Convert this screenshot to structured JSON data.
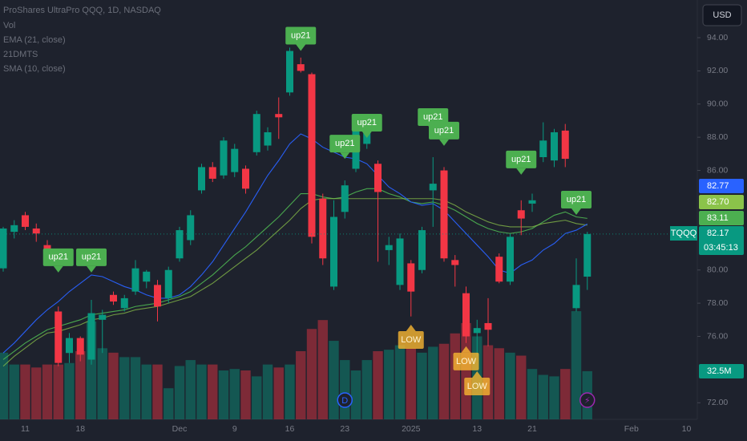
{
  "chart_data": {
    "type": "candlestick",
    "title": "ProShares UltraPro QQQ, 1D, NASDAQ",
    "currency": "USD",
    "categories": [
      null,
      null,
      "11",
      null,
      null,
      null,
      null,
      "18",
      null,
      null,
      null,
      null,
      null,
      null,
      null,
      null,
      "Dec",
      null,
      null,
      null,
      null,
      "9",
      null,
      null,
      null,
      null,
      "16",
      null,
      null,
      null,
      null,
      "23",
      null,
      null,
      null,
      null,
      null,
      "2025",
      null,
      null,
      null,
      null,
      null,
      "13",
      null,
      null,
      null,
      null,
      "21",
      null,
      null,
      null,
      null,
      null,
      null,
      null,
      null,
      "Feb",
      null,
      null,
      null,
      null,
      "10"
    ],
    "open": [
      80.1,
      82.3,
      83.3,
      82.5,
      81.5,
      77.5,
      75.0,
      75.9,
      74.6,
      77.0,
      78.5,
      77.7,
      78.7,
      79.3,
      79.1,
      78.3,
      80.7,
      81.8,
      84.8,
      86.2,
      85.7,
      85.9,
      86.1,
      87.1,
      87.5,
      89.4,
      90.7,
      92.4,
      91.8,
      84.3,
      79.0,
      83.5,
      86.1,
      87.6,
      86.4,
      81.2,
      79.1,
      80.4,
      80.0,
      84.8,
      86.0,
      80.6,
      78.6,
      76.2,
      76.8,
      80.8,
      79.3,
      83.6,
      84.0,
      86.8,
      86.6,
      88.4,
      77.7,
      79.6,
      null,
      null,
      null,
      null,
      null,
      null,
      null,
      null,
      null
    ],
    "high": [
      82.6,
      83.0,
      83.5,
      82.8,
      81.8,
      77.8,
      76.2,
      76.0,
      78.2,
      77.6,
      78.7,
      78.5,
      80.6,
      80.0,
      79.4,
      80.2,
      82.6,
      83.6,
      86.4,
      86.5,
      88.0,
      87.6,
      86.3,
      89.6,
      88.6,
      90.4,
      93.4,
      92.8,
      91.9,
      84.6,
      84.2,
      85.4,
      88.8,
      88.8,
      86.6,
      82.0,
      82.2,
      80.6,
      82.6,
      86.8,
      86.2,
      80.9,
      79.0,
      77.0,
      78.3,
      81.0,
      82.2,
      84.2,
      84.6,
      88.9,
      88.5,
      88.8,
      80.7,
      82.3,
      null,
      null,
      null,
      null,
      null,
      null,
      null,
      null,
      null
    ],
    "low": [
      79.9,
      81.9,
      82.4,
      81.7,
      80.4,
      74.2,
      74.4,
      74.5,
      74.3,
      75.0,
      77.9,
      77.5,
      78.5,
      78.9,
      76.9,
      78.0,
      80.5,
      81.5,
      84.6,
      85.3,
      85.5,
      85.6,
      84.6,
      86.9,
      87.2,
      87.9,
      90.5,
      91.9,
      81.6,
      80.3,
      78.8,
      83.1,
      85.9,
      87.3,
      80.5,
      80.3,
      78.8,
      77.2,
      79.8,
      82.6,
      80.5,
      79.0,
      75.6,
      74.8,
      75.4,
      79.2,
      79.1,
      82.1,
      83.5,
      86.5,
      86.2,
      86.2,
      77.5,
      78.8,
      null,
      null,
      null,
      null,
      null,
      null,
      null,
      null,
      null
    ],
    "close": [
      82.5,
      82.7,
      82.6,
      82.2,
      80.9,
      74.4,
      75.9,
      74.9,
      77.4,
      77.3,
      78.1,
      78.3,
      80.1,
      79.9,
      77.8,
      80.0,
      82.4,
      83.3,
      86.2,
      85.5,
      87.8,
      87.3,
      84.9,
      89.4,
      88.3,
      89.2,
      93.2,
      92.0,
      82.0,
      80.7,
      83.2,
      85.1,
      88.5,
      88.4,
      84.7,
      81.5,
      81.9,
      78.7,
      82.4,
      85.2,
      80.7,
      80.3,
      76.0,
      76.5,
      76.4,
      79.3,
      82.0,
      83.1,
      84.2,
      87.8,
      88.3,
      86.7,
      79.1,
      82.17,
      null,
      null,
      null,
      null,
      null,
      null,
      null,
      null,
      null
    ],
    "up_color": "#089981",
    "down_color": "#f23645",
    "ylim": [
      71.0,
      96.27
    ],
    "yticks": [
      {
        "value": 94,
        "label": "94.00"
      },
      {
        "value": 92,
        "label": "92.00"
      },
      {
        "value": 90,
        "label": "90.00"
      },
      {
        "value": 88,
        "label": "88.00"
      },
      {
        "value": 86,
        "label": "86.00"
      },
      {
        "value": 80,
        "label": "80.00"
      },
      {
        "value": 78,
        "label": "78.00"
      },
      {
        "value": 76,
        "label": "76.00"
      },
      {
        "value": 72,
        "label": "72.00"
      }
    ],
    "grid": false,
    "volume": {
      "name": "Vol",
      "ylim": [
        0,
        283
      ],
      "last_label": "32.5M",
      "last_value": 32.5,
      "values": [
        45,
        37,
        37,
        35,
        37,
        37,
        38,
        46,
        66,
        48,
        45,
        42,
        42,
        37,
        37,
        21,
        36,
        40,
        37,
        37,
        33,
        34,
        33,
        29,
        37,
        35,
        37,
        46,
        61,
        67,
        53,
        40,
        33,
        40,
        46,
        47,
        50,
        48,
        45,
        49,
        51,
        58,
        65,
        56,
        50,
        48,
        45,
        43,
        34,
        30,
        29,
        34,
        73,
        32.5,
        null,
        null,
        null,
        null,
        null,
        null,
        null,
        null,
        null
      ]
    },
    "series": [
      {
        "name": "EMA (21, close)",
        "color": "#4caf50",
        "last_label": "83.11",
        "values": [
          74.6,
          75.1,
          75.6,
          76.0,
          76.4,
          76.6,
          76.8,
          77.0,
          77.3,
          77.4,
          77.5,
          77.6,
          77.8,
          77.9,
          78.0,
          78.2,
          78.4,
          78.7,
          79.2,
          79.7,
          80.3,
          80.9,
          81.4,
          82.0,
          82.6,
          83.2,
          83.9,
          84.6,
          84.6,
          84.4,
          84.3,
          84.4,
          84.7,
          84.9,
          84.9,
          84.6,
          84.4,
          84.1,
          84.0,
          84.1,
          83.9,
          83.6,
          83.2,
          82.8,
          82.5,
          82.3,
          82.2,
          82.3,
          82.5,
          82.9,
          83.3,
          83.5,
          83.2,
          83.11,
          null,
          null,
          null,
          null,
          null,
          null,
          null,
          null,
          null
        ]
      },
      {
        "name": "21DMTS",
        "color": "#8bc34a",
        "last_label": "82.70",
        "values": [
          74.2,
          74.8,
          75.3,
          75.8,
          76.2,
          76.3,
          76.5,
          76.7,
          77.0,
          77.1,
          77.3,
          77.4,
          77.6,
          77.7,
          77.8,
          78.0,
          78.2,
          78.4,
          78.8,
          79.2,
          79.7,
          80.2,
          80.7,
          81.2,
          81.8,
          82.4,
          83.0,
          83.7,
          84.2,
          84.3,
          84.3,
          84.3,
          84.3,
          84.3,
          84.3,
          84.3,
          84.3,
          84.3,
          84.3,
          84.3,
          84.2,
          83.9,
          83.5,
          83.2,
          82.9,
          82.7,
          82.6,
          82.6,
          82.6,
          82.8,
          82.9,
          83.0,
          82.8,
          82.7,
          null,
          null,
          null,
          null,
          null,
          null,
          null,
          null,
          null
        ]
      },
      {
        "name": "SMA (10, close)",
        "color": "#2962ff",
        "last_label": "82.77",
        "values": [
          75.0,
          75.6,
          76.3,
          77.0,
          77.6,
          78.1,
          78.7,
          79.2,
          79.7,
          79.6,
          79.3,
          79.0,
          78.8,
          78.5,
          78.3,
          78.3,
          78.5,
          79.0,
          79.7,
          80.5,
          81.5,
          82.5,
          83.5,
          84.6,
          85.7,
          86.6,
          87.6,
          88.2,
          87.9,
          87.4,
          87.1,
          86.8,
          86.7,
          86.4,
          85.7,
          85.0,
          84.6,
          84.1,
          83.9,
          84.0,
          83.6,
          82.9,
          82.2,
          81.5,
          80.8,
          80.0,
          79.8,
          80.3,
          80.6,
          81.2,
          81.6,
          82.2,
          82.4,
          82.77,
          null,
          null,
          null,
          null,
          null,
          null,
          null,
          null,
          null
        ]
      }
    ],
    "last_price": {
      "symbol": "TQQQ",
      "value": 82.17,
      "label": "82.17",
      "countdown": "03:45:13"
    },
    "annotations": [
      {
        "text": "up21",
        "index": 5,
        "price": 79.85,
        "direction": "down",
        "color": "#4caf50"
      },
      {
        "text": "up21",
        "index": 8,
        "price": 79.85,
        "direction": "down",
        "color": "#4caf50"
      },
      {
        "text": "up21",
        "index": 27,
        "price": 93.2,
        "direction": "down",
        "color": "#4caf50"
      },
      {
        "text": "up21",
        "index": 31,
        "price": 86.7,
        "direction": "down",
        "color": "#4caf50"
      },
      {
        "text": "up21",
        "index": 33,
        "price": 87.96,
        "direction": "down",
        "color": "#4caf50"
      },
      {
        "text": "up21",
        "index": 39,
        "price": 88.3,
        "direction": "down",
        "color": "#4caf50"
      },
      {
        "text": "up21",
        "index": 40,
        "price": 87.48,
        "direction": "down",
        "color": "#4caf50"
      },
      {
        "text": "up21",
        "index": 47,
        "price": 85.74,
        "direction": "down",
        "color": "#4caf50"
      },
      {
        "text": "up21",
        "index": 52,
        "price": 83.32,
        "direction": "down",
        "color": "#4caf50"
      },
      {
        "text": "LOW",
        "index": 37,
        "price": 76.7,
        "direction": "up",
        "color": "#f7b731"
      },
      {
        "text": "LOW",
        "index": 42,
        "price": 75.4,
        "direction": "up",
        "color": "#f7b731"
      },
      {
        "text": "LOW",
        "index": 43,
        "price": 73.9,
        "direction": "up",
        "color": "#f7b731"
      }
    ],
    "events": [
      {
        "label": "D",
        "index": 31,
        "color": "#2962ff"
      },
      {
        "label": "⚡",
        "index": 53,
        "color": "#9c27b0"
      }
    ]
  }
}
